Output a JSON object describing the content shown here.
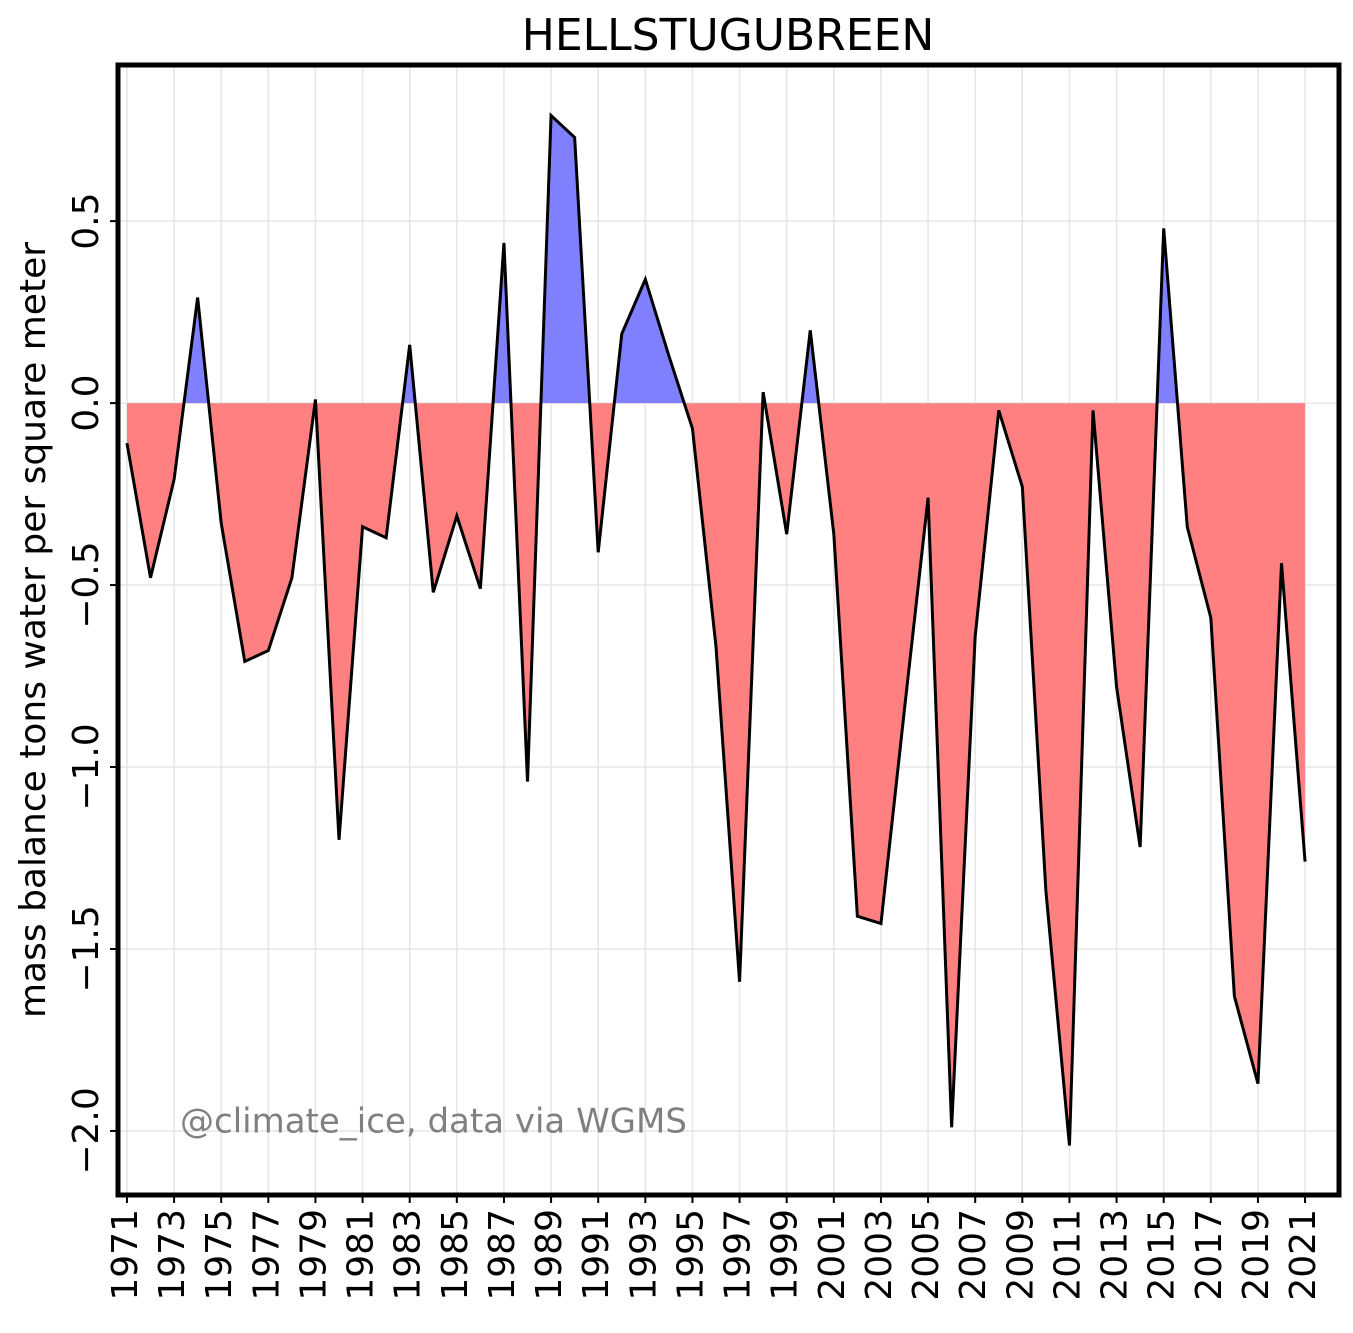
{
  "chart_data": {
    "type": "area",
    "title": "HELLSTUGUBREEN",
    "ylabel": "mass balance tons water per square meter",
    "annotation": "@climate_ice, data via WGMS",
    "x": [
      1971,
      1972,
      1973,
      1974,
      1975,
      1976,
      1977,
      1978,
      1979,
      1980,
      1981,
      1982,
      1983,
      1984,
      1985,
      1986,
      1987,
      1988,
      1989,
      1990,
      1991,
      1992,
      1993,
      1994,
      1995,
      1996,
      1997,
      1998,
      1999,
      2000,
      2001,
      2002,
      2003,
      2004,
      2005,
      2006,
      2007,
      2008,
      2009,
      2010,
      2011,
      2012,
      2013,
      2014,
      2015,
      2016,
      2017,
      2018,
      2019,
      2020,
      2021
    ],
    "values": [
      -0.11,
      -0.48,
      -0.21,
      0.29,
      -0.33,
      -0.71,
      -0.68,
      -0.48,
      0.01,
      -1.2,
      -0.34,
      -0.37,
      0.16,
      -0.52,
      -0.31,
      -0.51,
      0.44,
      -1.04,
      0.79,
      0.73,
      -0.41,
      0.19,
      0.34,
      0.13,
      -0.07,
      -0.67,
      -1.59,
      0.03,
      -0.36,
      0.2,
      -0.36,
      -1.41,
      -1.43,
      -0.84,
      -0.26,
      -1.99,
      -0.64,
      -0.02,
      -0.23,
      -1.34,
      -2.04,
      -0.02,
      -0.78,
      -1.22,
      0.48,
      -0.34,
      -0.59,
      -1.63,
      -1.87,
      -0.44,
      -1.26
    ],
    "positive_color": "#8080ff",
    "negative_color": "#ff8080",
    "line_color": "#000000",
    "xlim": [
      1970.62,
      2022.44
    ],
    "xticks": [
      1971,
      1973,
      1975,
      1977,
      1979,
      1981,
      1983,
      1985,
      1987,
      1989,
      1991,
      1993,
      1995,
      1997,
      1999,
      2001,
      2003,
      2005,
      2007,
      2009,
      2011,
      2013,
      2015,
      2017,
      2019,
      2021
    ],
    "ylim": [
      -2.176,
      0.929
    ],
    "yticks": [
      {
        "value": -2,
        "label": "−2.0"
      },
      {
        "value": -1.5,
        "label": "−1.5"
      },
      {
        "value": -1,
        "label": "−1.0"
      },
      {
        "value": -0.5,
        "label": "−0.5"
      },
      {
        "value": 0,
        "label": "0.0"
      },
      0.5
    ],
    "grid": true
  }
}
